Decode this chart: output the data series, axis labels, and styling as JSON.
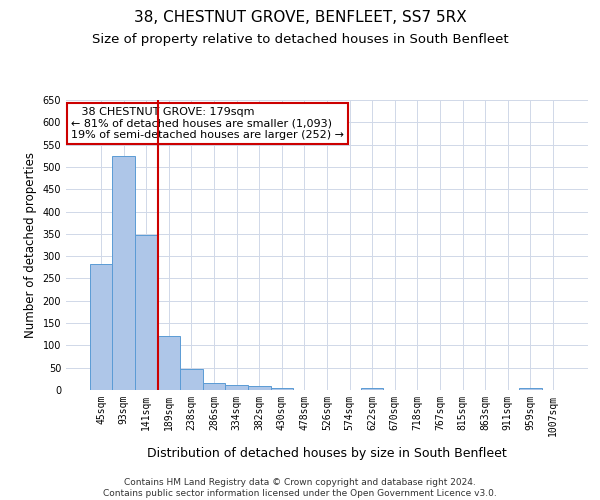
{
  "title": "38, CHESTNUT GROVE, BENFLEET, SS7 5RX",
  "subtitle": "Size of property relative to detached houses in South Benfleet",
  "xlabel": "Distribution of detached houses by size in South Benfleet",
  "ylabel": "Number of detached properties",
  "categories": [
    "45sqm",
    "93sqm",
    "141sqm",
    "189sqm",
    "238sqm",
    "286sqm",
    "334sqm",
    "382sqm",
    "430sqm",
    "478sqm",
    "526sqm",
    "574sqm",
    "622sqm",
    "670sqm",
    "718sqm",
    "767sqm",
    "815sqm",
    "863sqm",
    "911sqm",
    "959sqm",
    "1007sqm"
  ],
  "values": [
    282,
    524,
    348,
    122,
    48,
    16,
    11,
    9,
    5,
    0,
    0,
    0,
    5,
    0,
    0,
    0,
    0,
    0,
    0,
    5,
    0
  ],
  "bar_color": "#aec6e8",
  "bar_edge_color": "#5b9bd5",
  "grid_color": "#d0d8e8",
  "background_color": "#ffffff",
  "annotation_line1": "   38 CHESTNUT GROVE: 179sqm",
  "annotation_line2": "← 81% of detached houses are smaller (1,093)",
  "annotation_line3": "19% of semi-detached houses are larger (252) →",
  "annotation_box_color": "#cc0000",
  "vline_x_index": 2.5,
  "vline_color": "#cc0000",
  "ylim": [
    0,
    650
  ],
  "yticks": [
    0,
    50,
    100,
    150,
    200,
    250,
    300,
    350,
    400,
    450,
    500,
    550,
    600,
    650
  ],
  "footnote": "Contains HM Land Registry data © Crown copyright and database right 2024.\nContains public sector information licensed under the Open Government Licence v3.0.",
  "title_fontsize": 11,
  "subtitle_fontsize": 9.5,
  "xlabel_fontsize": 9,
  "ylabel_fontsize": 8.5,
  "tick_fontsize": 7,
  "annotation_fontsize": 8,
  "footnote_fontsize": 6.5
}
